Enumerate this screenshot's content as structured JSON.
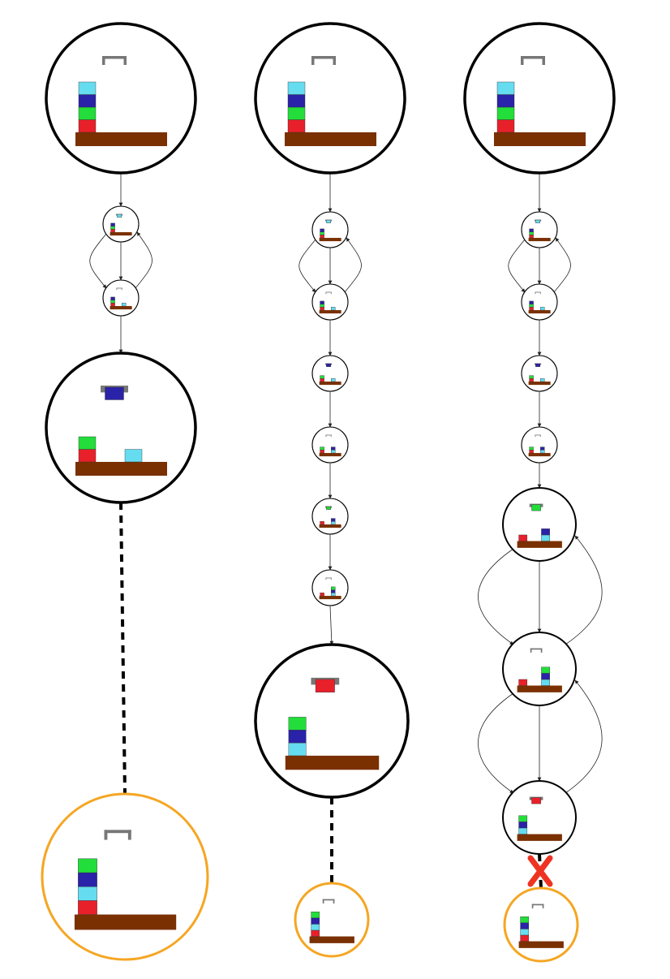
{
  "colors": {
    "red": "#e8202a",
    "green": "#22dd3a",
    "blue": "#2a22a8",
    "cyan": "#66dcf0",
    "table": "#7a3000",
    "gripper": "#777777",
    "goal_ring": "#f5a623",
    "ring": "#000000",
    "fail_mark": "#ee3322"
  },
  "columns": [
    {
      "name": "column-1",
      "states": [
        {
          "role": "start",
          "stack": [
            "red",
            "green",
            "blue",
            "cyan"
          ],
          "loose": [],
          "held": null
        },
        {
          "role": "step",
          "stack": [
            "red",
            "green",
            "blue"
          ],
          "loose": [],
          "held": "cyan"
        },
        {
          "role": "step",
          "stack": [
            "red",
            "green",
            "blue"
          ],
          "loose": [
            "cyan"
          ],
          "held": null
        },
        {
          "role": "expanded",
          "stack": [
            "red",
            "green"
          ],
          "loose": [
            "cyan"
          ],
          "held": "blue"
        },
        {
          "role": "goal",
          "stack": [
            "red",
            "cyan",
            "blue",
            "green"
          ],
          "loose": [],
          "held": null
        }
      ],
      "final_link": "dashed"
    },
    {
      "name": "column-2",
      "states": [
        {
          "role": "start",
          "stack": [
            "red",
            "green",
            "blue",
            "cyan"
          ],
          "loose": [],
          "held": null
        },
        {
          "role": "step",
          "stack": [
            "red",
            "green",
            "blue"
          ],
          "loose": [],
          "held": "cyan"
        },
        {
          "role": "step",
          "stack": [
            "red",
            "green",
            "blue"
          ],
          "loose": [
            "cyan"
          ],
          "held": null
        },
        {
          "role": "step",
          "stack": [
            "red",
            "green"
          ],
          "loose": [
            "cyan"
          ],
          "held": "blue"
        },
        {
          "role": "step",
          "stack": [
            "red",
            "green"
          ],
          "loose": [
            "cyan",
            "blue"
          ],
          "held": null
        },
        {
          "role": "step",
          "stack": [
            "red"
          ],
          "loose": [
            "cyan",
            "blue"
          ],
          "held": "green"
        },
        {
          "role": "step",
          "stack": [
            "red"
          ],
          "loose": [
            "cyan",
            "blue",
            "green"
          ],
          "held": null
        },
        {
          "role": "expanded",
          "stack": [
            "cyan",
            "blue",
            "green"
          ],
          "loose": [],
          "held": "red"
        },
        {
          "role": "goal",
          "stack": [
            "red",
            "cyan",
            "blue",
            "green"
          ],
          "loose": [],
          "held": null
        }
      ],
      "final_link": "dashed"
    },
    {
      "name": "column-3",
      "states": [
        {
          "role": "start",
          "stack": [
            "red",
            "green",
            "blue",
            "cyan"
          ],
          "loose": [],
          "held": null
        },
        {
          "role": "step",
          "stack": [
            "red",
            "green",
            "blue"
          ],
          "loose": [],
          "held": "cyan"
        },
        {
          "role": "step",
          "stack": [
            "red",
            "green",
            "blue"
          ],
          "loose": [
            "cyan"
          ],
          "held": null
        },
        {
          "role": "step",
          "stack": [
            "red",
            "green"
          ],
          "loose": [
            "cyan"
          ],
          "held": "blue"
        },
        {
          "role": "step",
          "stack": [
            "red",
            "green"
          ],
          "loose": [
            "cyan",
            "blue"
          ],
          "held": null
        },
        {
          "role": "medium",
          "stack": [
            "red"
          ],
          "loose": [
            "cyan",
            "blue"
          ],
          "held": "green"
        },
        {
          "role": "medium",
          "stack": [
            "red"
          ],
          "loose": [
            "cyan",
            "blue",
            "green"
          ],
          "held": null
        },
        {
          "role": "medium",
          "stack": [
            "cyan",
            "blue",
            "green"
          ],
          "loose": [],
          "held": "red"
        },
        {
          "role": "goal",
          "stack": [
            "red",
            "cyan",
            "blue",
            "green"
          ],
          "loose": [],
          "held": null
        }
      ],
      "final_link": "failed"
    }
  ]
}
